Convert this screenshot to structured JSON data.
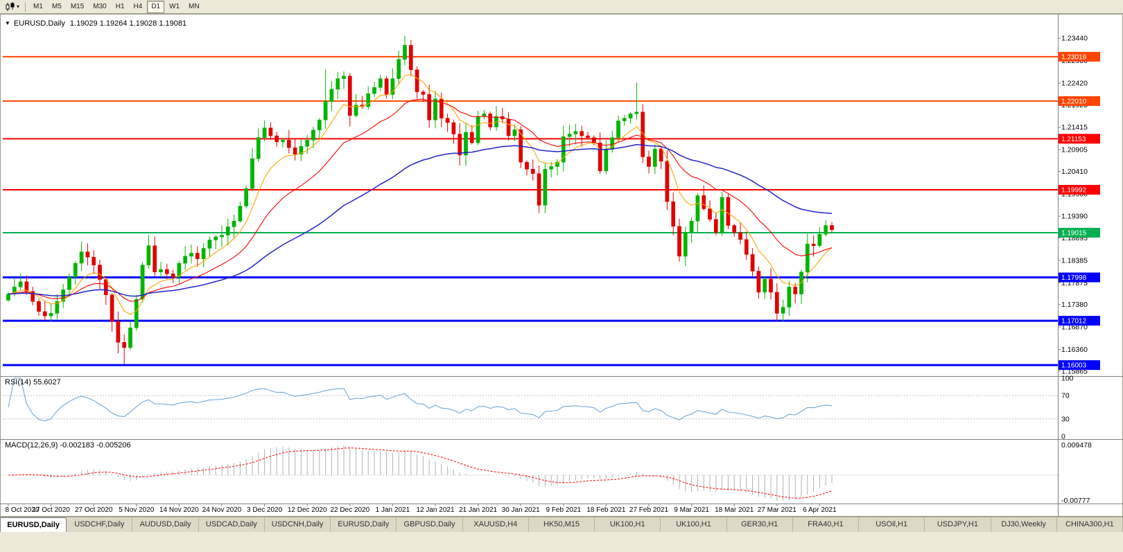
{
  "toolbar": {
    "dropdown_icon": "▾",
    "timeframes": [
      "M1",
      "M5",
      "M15",
      "M30",
      "H1",
      "H4",
      "D1",
      "W1",
      "MN"
    ],
    "active_timeframe": "D1"
  },
  "chart_header": {
    "collapse_icon": "▼",
    "symbol": "EURUSD,Daily",
    "ohlc": "1.19029 1.19264 1.19028 1.19081"
  },
  "tabs": [
    "EURUSD,Daily",
    "USDCHF,Daily",
    "AUDUSD,Daily",
    "USDCAD,Daily",
    "USDCNH,Daily",
    "EURUSD,Daily",
    "GBPUSD,Daily",
    "XAUUSD,H4",
    "HK50,M15",
    "UK100,H1",
    "UK100,H1",
    "GER30,H1",
    "FRA40,H1",
    "USOil,H1",
    "USDJPY,H1",
    "DJ30,Weekly",
    "CHINA300,H1"
  ],
  "active_tab_index": 0,
  "chart_data": {
    "type": "candlestick",
    "symbol": "EURUSD",
    "timeframe": "Daily",
    "first_open": 1.1748,
    "closes": [
      1.1762,
      1.1778,
      1.179,
      1.1768,
      1.1745,
      1.1722,
      1.1712,
      1.1718,
      1.1745,
      1.1772,
      1.18,
      1.1832,
      1.1858,
      1.1846,
      1.1828,
      1.1795,
      1.176,
      1.17,
      1.1652,
      1.164,
      1.1685,
      1.175,
      1.1828,
      1.1872,
      1.1812,
      1.1818,
      1.1808,
      1.18,
      1.1832,
      1.1848,
      1.1855,
      1.1842,
      1.1866,
      1.1885,
      1.1892,
      1.1896,
      1.1915,
      1.1928,
      1.1962,
      1.2002,
      1.207,
      1.2118,
      1.214,
      1.2122,
      1.2108,
      1.2112,
      1.2095,
      1.208,
      1.2098,
      1.2112,
      1.2135,
      1.2158,
      1.22,
      1.2228,
      1.2252,
      1.2258,
      1.2168,
      1.2192,
      1.2188,
      1.2218,
      1.2232,
      1.2252,
      1.2216,
      1.2252,
      1.2296,
      1.2328,
      1.2272,
      1.2222,
      1.2216,
      1.2158,
      1.2206,
      1.2162,
      1.2152,
      1.2126,
      1.2078,
      1.213,
      1.2106,
      1.2166,
      1.2172,
      1.2142,
      1.2166,
      1.216,
      1.2122,
      1.2136,
      1.2062,
      1.2046,
      1.2036,
      1.1964,
      1.2046,
      1.2052,
      1.2062,
      1.212,
      1.2126,
      1.2132,
      1.2122,
      1.2118,
      1.2106,
      1.2042,
      1.2092,
      1.2118,
      1.2156,
      1.2162,
      1.2172,
      1.2176,
      1.2074,
      1.2052,
      1.2092,
      1.2064,
      1.1972,
      1.1916,
      1.1848,
      1.1902,
      1.1928,
      1.1986,
      1.1956,
      1.1932,
      1.1902,
      1.1982,
      1.1918,
      1.1902,
      1.1886,
      1.1852,
      1.1814,
      1.1766,
      1.1796,
      1.1766,
      1.1718,
      1.1732,
      1.1778,
      1.1762,
      1.1812,
      1.1876,
      1.1872,
      1.1898,
      1.1918,
      1.1908
    ],
    "spike_highs": {
      "52": 1.2273,
      "65": 1.2349,
      "103": 1.2243
    },
    "spike_lows": {
      "19": 1.1603,
      "87": 1.1946,
      "110": 1.1836
    },
    "x_labels": [
      "8 Oct 2020",
      "17 Oct 2020",
      "27 Oct 2020",
      "5 Nov 2020",
      "14 Nov 2020",
      "24 Nov 2020",
      "3 Dec 2020",
      "12 Dec 2020",
      "22 Dec 2020",
      "1 Jan 2021",
      "12 Jan 2021",
      "21 Jan 2021",
      "30 Jan 2021",
      "9 Feb 2021",
      "18 Feb 2021",
      "27 Feb 2021",
      "9 Mar 2021",
      "18 Mar 2021",
      "27 Mar 2021",
      "6 Apr 2021"
    ],
    "x_label_step": 7,
    "y_ticks": [
      "1.23440",
      "1.22930",
      "1.22420",
      "1.21925",
      "1.21415",
      "1.20905",
      "1.20410",
      "1.19900",
      "1.19390",
      "1.18895",
      "1.18385",
      "1.17875",
      "1.17380",
      "1.16870",
      "1.16360",
      "1.15865"
    ],
    "price_range": [
      1.158,
      1.239
    ],
    "levels": [
      {
        "value": 1.23019,
        "label": "1.23019",
        "color": "#FF4500",
        "width": 2
      },
      {
        "value": 1.2201,
        "label": "1.22010",
        "color": "#FF4500",
        "width": 2
      },
      {
        "value": 1.21153,
        "label": "1.21153",
        "color": "#FF0000",
        "width": 2
      },
      {
        "value": 1.19992,
        "label": "1.19992",
        "color": "#FF0000",
        "width": 2
      },
      {
        "value": 1.19015,
        "label": "1.19015",
        "color": "#00B050",
        "width": 2
      },
      {
        "value": 1.17998,
        "label": "1.17998",
        "color": "#0000FF",
        "width": 3
      },
      {
        "value": 1.17012,
        "label": "1.17012",
        "color": "#0000FF",
        "width": 3
      },
      {
        "value": 1.16003,
        "label": "1.16003",
        "color": "#0000FF",
        "width": 3
      }
    ],
    "colors": {
      "bull": "#00B400",
      "bear": "#E00000",
      "ma_fast": "#FFA500",
      "ma_mid": "#FF0000",
      "ma_slow": "#2222C8",
      "rsi_line": "#6FA8DC",
      "macd_hist": "#B0B0B0",
      "macd_signal": "#FF0000"
    },
    "ma_periods": {
      "fast": 8,
      "mid": 20,
      "slow": 55
    },
    "rsi": {
      "label": "RSI(14) 55.6027",
      "period": 14,
      "value": 55.6027,
      "ticks": [
        "100",
        "70",
        "30",
        "0"
      ],
      "guides": [
        70,
        30
      ]
    },
    "macd": {
      "label": "MACD(12,26,9) -0.002183 -0.005206",
      "value": -0.002183,
      "signal_value": -0.005206,
      "tick_top": "0.009478",
      "tick_bottom": "-0.00777",
      "range": [
        -0.0078,
        0.0095
      ]
    }
  }
}
